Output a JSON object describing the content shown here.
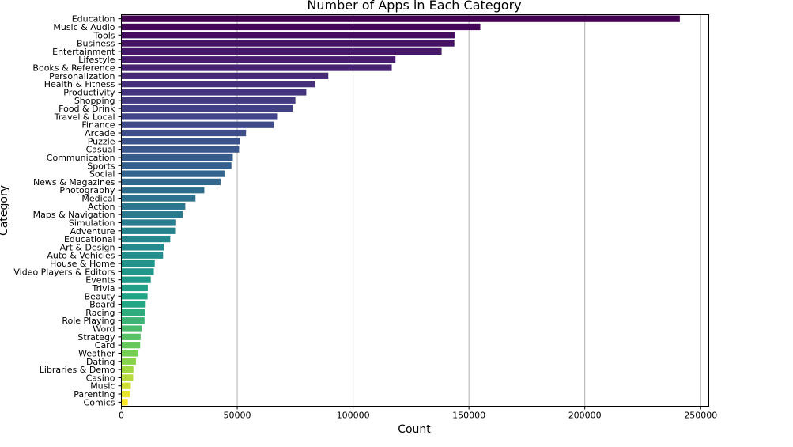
{
  "chart_data": {
    "type": "bar",
    "orientation": "horizontal",
    "title": "Number of Apps in Each Category",
    "xlabel": "Count",
    "ylabel": "Category",
    "xlim": [
      0,
      253500
    ],
    "xticks": [
      0,
      50000,
      100000,
      150000,
      200000,
      250000
    ],
    "xtick_labels": [
      "0",
      "50000",
      "100000",
      "150000",
      "200000",
      "250000"
    ],
    "grid": "vertical",
    "palette": "viridis",
    "colors": {
      "start": "#440154",
      "mid": "#21918c",
      "end": "#fde725",
      "grid": "#b0b0b0"
    },
    "categories": [
      "Education",
      "Music & Audio",
      "Tools",
      "Business",
      "Entertainment",
      "Lifestyle",
      "Books & Reference",
      "Personalization",
      "Health & Fitness",
      "Productivity",
      "Shopping",
      "Food & Drink",
      "Travel & Local",
      "Finance",
      "Arcade",
      "Puzzle",
      "Casual",
      "Communication",
      "Sports",
      "Social",
      "News & Magazines",
      "Photography",
      "Medical",
      "Action",
      "Maps & Navigation",
      "Simulation",
      "Adventure",
      "Educational",
      "Art & Design",
      "Auto & Vehicles",
      "House & Home",
      "Video Players & Editors",
      "Events",
      "Trivia",
      "Beauty",
      "Board",
      "Racing",
      "Role Playing",
      "Word",
      "Strategy",
      "Card",
      "Weather",
      "Dating",
      "Libraries & Demo",
      "Casino",
      "Music",
      "Parenting",
      "Comics"
    ],
    "values": [
      241000,
      154900,
      143800,
      143700,
      138200,
      118300,
      116700,
      89300,
      83600,
      79800,
      75100,
      73900,
      67200,
      65800,
      53800,
      51200,
      50800,
      48100,
      47500,
      44500,
      42800,
      35800,
      32000,
      27600,
      26600,
      23300,
      23200,
      21100,
      18300,
      18000,
      14400,
      14000,
      12700,
      11400,
      11300,
      10500,
      10200,
      10000,
      8800,
      8300,
      8100,
      7300,
      6300,
      5200,
      5100,
      4100,
      3700,
      2800
    ]
  }
}
